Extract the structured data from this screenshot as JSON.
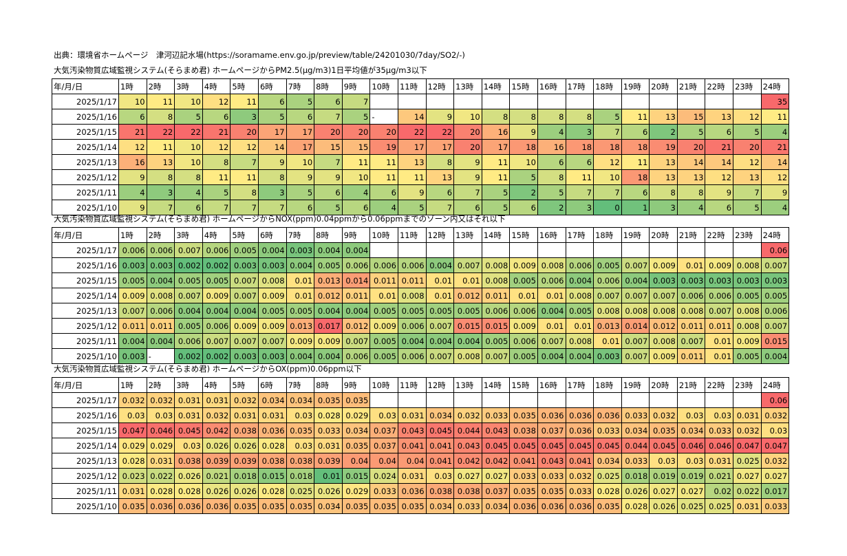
{
  "source_line": "出典：環境省ホームページ　津河辺記水場(https://soramame.env.go.jp/preview/table/24201030/7day/SO2/-)",
  "header_row": [
    "年/月/日",
    "1時",
    "2時",
    "3時",
    "4時",
    "5時",
    "6時",
    "7時",
    "8時",
    "9時",
    "10時",
    "11時",
    "12時",
    "13時",
    "14時",
    "15時",
    "16時",
    "17時",
    "18時",
    "19時",
    "20時",
    "21時",
    "22時",
    "23時",
    "24時"
  ],
  "tables": [
    {
      "caption": "大気汚染物質広域監視システム(そらまめ君) ホームページからPM2.5(μg/m3)1日平均値が35μg/m3以下",
      "rows": [
        {
          "date": "2025/1/17",
          "values": [
            "10",
            "11",
            "10",
            "12",
            "11",
            "6",
            "5",
            "6",
            "7",
            "",
            "",
            "",
            "",
            "",
            "",
            "",
            "",
            "",
            "",
            "",
            "",
            "",
            "",
            "35"
          ]
        },
        {
          "date": "2025/1/16",
          "values": [
            "6",
            "8",
            "5",
            "6",
            "3",
            "5",
            "6",
            "7",
            "5",
            "-",
            "14",
            "9",
            "10",
            "8",
            "8",
            "8",
            "8",
            "5",
            "11",
            "13",
            "15",
            "13",
            "12",
            "11"
          ]
        },
        {
          "date": "2025/1/15",
          "values": [
            "21",
            "22",
            "22",
            "21",
            "20",
            "17",
            "17",
            "20",
            "20",
            "20",
            "22",
            "22",
            "20",
            "16",
            "9",
            "4",
            "3",
            "7",
            "6",
            "2",
            "5",
            "6",
            "5",
            "4"
          ]
        },
        {
          "date": "2025/1/14",
          "values": [
            "12",
            "11",
            "10",
            "12",
            "12",
            "14",
            "17",
            "15",
            "15",
            "19",
            "17",
            "17",
            "20",
            "17",
            "18",
            "16",
            "18",
            "18",
            "18",
            "19",
            "20",
            "21",
            "20",
            "21"
          ]
        },
        {
          "date": "2025/1/13",
          "values": [
            "16",
            "13",
            "10",
            "8",
            "7",
            "9",
            "10",
            "7",
            "11",
            "11",
            "13",
            "8",
            "9",
            "11",
            "10",
            "6",
            "6",
            "12",
            "11",
            "13",
            "14",
            "14",
            "12",
            "14"
          ]
        },
        {
          "date": "2025/1/12",
          "values": [
            "9",
            "8",
            "8",
            "11",
            "11",
            "8",
            "9",
            "9",
            "10",
            "11",
            "11",
            "13",
            "9",
            "11",
            "5",
            "8",
            "11",
            "10",
            "18",
            "13",
            "13",
            "12",
            "13",
            "12"
          ]
        },
        {
          "date": "2025/1/11",
          "values": [
            "4",
            "3",
            "4",
            "5",
            "8",
            "3",
            "5",
            "6",
            "4",
            "6",
            "9",
            "6",
            "7",
            "5",
            "2",
            "5",
            "7",
            "7",
            "6",
            "8",
            "8",
            "9",
            "7",
            "9"
          ]
        },
        {
          "date": "2025/1/10",
          "values": [
            "9",
            "7",
            "6",
            "7",
            "7",
            "7",
            "6",
            "5",
            "6",
            "4",
            "5",
            "7",
            "6",
            "5",
            "6",
            "2",
            "3",
            "0",
            "1",
            "3",
            "4",
            "6",
            "5",
            "4"
          ]
        }
      ]
    },
    {
      "caption": "大気汚染物質広域監視システム(そらまめ君) ホームページからNOX(ppm)0.04ppmから0.06ppmまでのゾーン内又はそれ以下",
      "rows": [
        {
          "date": "2025/1/17",
          "values": [
            "0.006",
            "0.006",
            "0.007",
            "0.006",
            "0.005",
            "0.004",
            "0.003",
            "0.004",
            "0.004",
            "",
            "",
            "",
            "",
            "",
            "",
            "",
            "",
            "",
            "",
            "",
            "",
            "",
            "",
            "0.06"
          ]
        },
        {
          "date": "2025/1/16",
          "values": [
            "0.003",
            "0.003",
            "0.002",
            "0.002",
            "0.003",
            "0.003",
            "0.004",
            "0.005",
            "0.006",
            "0.006",
            "0.006",
            "0.004",
            "0.007",
            "0.008",
            "0.009",
            "0.008",
            "0.006",
            "0.005",
            "0.007",
            "0.009",
            "0.01",
            "0.009",
            "0.008",
            "0.007"
          ]
        },
        {
          "date": "2025/1/15",
          "values": [
            "0.005",
            "0.004",
            "0.005",
            "0.005",
            "0.007",
            "0.008",
            "0.01",
            "0.013",
            "0.014",
            "0.011",
            "0.011",
            "0.01",
            "0.01",
            "0.008",
            "0.005",
            "0.006",
            "0.004",
            "0.006",
            "0.004",
            "0.003",
            "0.003",
            "0.003",
            "0.003",
            "0.003"
          ]
        },
        {
          "date": "2025/1/14",
          "values": [
            "0.009",
            "0.008",
            "0.007",
            "0.009",
            "0.007",
            "0.009",
            "0.01",
            "0.012",
            "0.011",
            "0.01",
            "0.008",
            "0.01",
            "0.012",
            "0.011",
            "0.01",
            "0.01",
            "0.008",
            "0.007",
            "0.007",
            "0.007",
            "0.006",
            "0.006",
            "0.005",
            "0.005"
          ]
        },
        {
          "date": "2025/1/13",
          "values": [
            "0.007",
            "0.006",
            "0.004",
            "0.004",
            "0.004",
            "0.005",
            "0.005",
            "0.004",
            "0.004",
            "0.005",
            "0.005",
            "0.005",
            "0.005",
            "0.006",
            "0.006",
            "0.004",
            "0.005",
            "0.008",
            "0.008",
            "0.008",
            "0.008",
            "0.007",
            "0.008",
            "0.006"
          ]
        },
        {
          "date": "2025/1/12",
          "values": [
            "0.011",
            "0.011",
            "0.005",
            "0.006",
            "0.009",
            "0.009",
            "0.013",
            "0.017",
            "0.012",
            "0.009",
            "0.006",
            "0.007",
            "0.015",
            "0.015",
            "0.009",
            "0.01",
            "0.01",
            "0.013",
            "0.014",
            "0.012",
            "0.011",
            "0.011",
            "0.008",
            "0.007"
          ]
        },
        {
          "date": "2025/1/11",
          "values": [
            "0.004",
            "0.004",
            "0.006",
            "0.007",
            "0.007",
            "0.007",
            "0.009",
            "0.009",
            "0.007",
            "0.005",
            "0.004",
            "0.004",
            "0.004",
            "0.005",
            "0.006",
            "0.007",
            "0.008",
            "0.01",
            "0.007",
            "0.008",
            "0.007",
            "0.01",
            "0.009",
            "0.015"
          ]
        },
        {
          "date": "2025/1/10",
          "values": [
            "0.003",
            "-",
            "0.002",
            "0.002",
            "0.003",
            "0.003",
            "0.004",
            "0.004",
            "0.006",
            "0.005",
            "0.006",
            "0.007",
            "0.008",
            "0.007",
            "0.005",
            "0.004",
            "0.004",
            "0.003",
            "0.007",
            "0.009",
            "0.011",
            "0.01",
            "0.005",
            "0.004"
          ]
        }
      ]
    },
    {
      "caption": "大気汚染物質広域監視システム(そらまめ君) ホームページからOX(ppm)0.06ppm以下",
      "rows": [
        {
          "date": "2025/1/17",
          "values": [
            "0.032",
            "0.032",
            "0.031",
            "0.031",
            "0.032",
            "0.034",
            "0.034",
            "0.035",
            "0.035",
            "",
            "",
            "",
            "",
            "",
            "",
            "",
            "",
            "",
            "",
            "",
            "",
            "",
            "",
            "0.06"
          ]
        },
        {
          "date": "2025/1/16",
          "values": [
            "0.03",
            "0.03",
            "0.031",
            "0.032",
            "0.031",
            "0.031",
            "0.03",
            "0.028",
            "0.029",
            "0.03",
            "0.031",
            "0.034",
            "0.032",
            "0.033",
            "0.035",
            "0.036",
            "0.036",
            "0.036",
            "0.033",
            "0.032",
            "0.03",
            "0.03",
            "0.031",
            "0.032"
          ]
        },
        {
          "date": "2025/1/15",
          "values": [
            "0.047",
            "0.046",
            "0.045",
            "0.042",
            "0.038",
            "0.036",
            "0.035",
            "0.033",
            "0.034",
            "0.037",
            "0.043",
            "0.045",
            "0.044",
            "0.043",
            "0.038",
            "0.037",
            "0.036",
            "0.033",
            "0.034",
            "0.035",
            "0.034",
            "0.033",
            "0.032",
            "0.03"
          ]
        },
        {
          "date": "2025/1/14",
          "values": [
            "0.029",
            "0.029",
            "0.03",
            "0.026",
            "0.026",
            "0.028",
            "0.03",
            "0.031",
            "0.035",
            "0.037",
            "0.041",
            "0.041",
            "0.043",
            "0.045",
            "0.045",
            "0.045",
            "0.045",
            "0.045",
            "0.044",
            "0.045",
            "0.046",
            "0.046",
            "0.047",
            "0.047"
          ]
        },
        {
          "date": "2025/1/13",
          "values": [
            "0.028",
            "0.031",
            "0.038",
            "0.039",
            "0.039",
            "0.038",
            "0.038",
            "0.039",
            "0.04",
            "0.04",
            "0.04",
            "0.041",
            "0.042",
            "0.042",
            "0.041",
            "0.043",
            "0.041",
            "0.034",
            "0.033",
            "0.03",
            "0.03",
            "0.031",
            "0.025",
            "0.032"
          ]
        },
        {
          "date": "2025/1/12",
          "values": [
            "0.023",
            "0.022",
            "0.026",
            "0.021",
            "0.018",
            "0.015",
            "0.018",
            "0.01",
            "0.015",
            "0.024",
            "0.031",
            "0.03",
            "0.027",
            "0.027",
            "0.033",
            "0.033",
            "0.032",
            "0.025",
            "0.018",
            "0.019",
            "0.019",
            "0.021",
            "0.027",
            "0.027"
          ]
        },
        {
          "date": "2025/1/11",
          "values": [
            "0.031",
            "0.028",
            "0.028",
            "0.026",
            "0.026",
            "0.028",
            "0.025",
            "0.026",
            "0.029",
            "0.033",
            "0.036",
            "0.038",
            "0.038",
            "0.037",
            "0.035",
            "0.035",
            "0.033",
            "0.028",
            "0.026",
            "0.027",
            "0.027",
            "0.02",
            "0.022",
            "0.017"
          ]
        },
        {
          "date": "2025/1/10",
          "values": [
            "0.035",
            "0.036",
            "0.036",
            "0.036",
            "0.035",
            "0.035",
            "0.035",
            "0.034",
            "0.035",
            "0.035",
            "0.035",
            "0.034",
            "0.033",
            "0.034",
            "0.036",
            "0.036",
            "0.036",
            "0.035",
            "0.028",
            "0.026",
            "0.025",
            "0.025",
            "0.031",
            "0.033"
          ]
        }
      ]
    }
  ],
  "colors": {
    "scale_low": "#63be7b",
    "scale_mid": "#ffeb84",
    "scale_high": "#f8696b",
    "highlight_24h": "#f8696b"
  }
}
